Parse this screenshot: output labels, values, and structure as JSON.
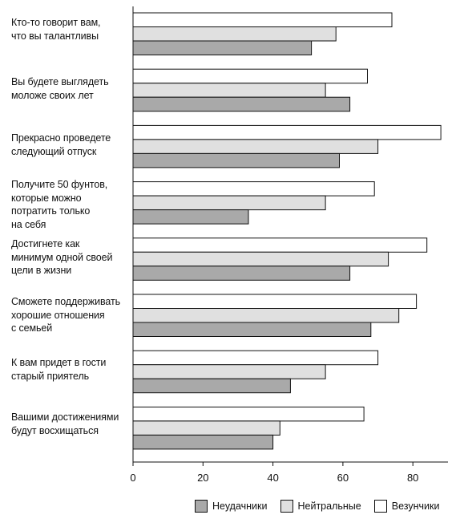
{
  "chart_data": {
    "type": "bar",
    "orientation": "horizontal",
    "categories": [
      "Кто-то говорит вам,\nчто вы талантливы",
      "Вы будете выглядеть\nмоложе своих лет",
      "Прекрасно проведете\nследующий отпуск",
      "Получите 50 фунтов,\nкоторые можно\nпотратить только\nна себя",
      "Достигнете как\nминимум одной своей\nцели в жизни",
      "Сможете поддерживать\nхорошие отношения\nс семьей",
      "К вам придет в гости\nстарый приятель",
      "Вашими достижениями\nбудут восхищаться"
    ],
    "series": [
      {
        "name": "Везунчики",
        "color": "#ffffff",
        "values": [
          74,
          67,
          88,
          69,
          84,
          81,
          70,
          66
        ]
      },
      {
        "name": "Нейтральные",
        "color": "#e0e0e0",
        "values": [
          58,
          55,
          70,
          55,
          73,
          76,
          55,
          42
        ]
      },
      {
        "name": "Неудачники",
        "color": "#a9a9a9",
        "values": [
          51,
          62,
          59,
          33,
          62,
          68,
          45,
          40
        ]
      }
    ],
    "legend_order": [
      "Неудачники",
      "Нейтральные",
      "Везунчики"
    ],
    "xticks": [
      0,
      20,
      40,
      60,
      80
    ],
    "xlim": [
      0,
      90
    ],
    "grid": false,
    "legend_position": "bottom-right"
  }
}
